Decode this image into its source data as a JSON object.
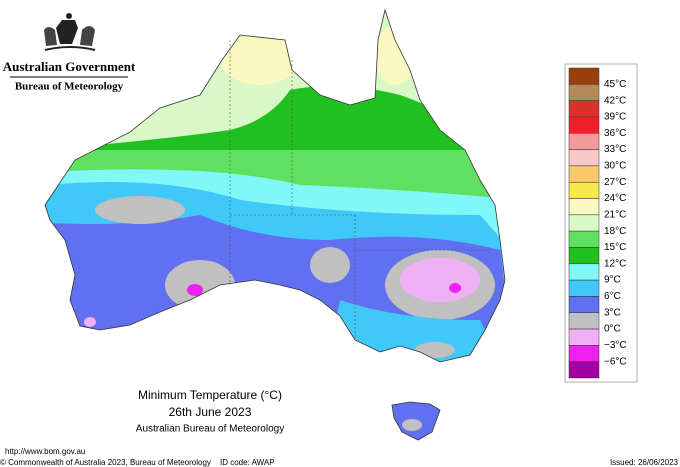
{
  "header": {
    "government": "Australian Government",
    "bureau": "Bureau of Meteorology"
  },
  "caption": {
    "title": "Minimum Temperature (°C)",
    "date": "26th June 2023",
    "source": "Australian Bureau of Meteorology"
  },
  "legend": {
    "labels": [
      "45°C",
      "42°C",
      "39°C",
      "36°C",
      "33°C",
      "30°C",
      "27°C",
      "24°C",
      "21°C",
      "18°C",
      "15°C",
      "12°C",
      "9°C",
      "6°C",
      "3°C",
      "0°C",
      "−3°C",
      "−6°C"
    ],
    "colors": [
      "#9a3f0c",
      "#b5875a",
      "#d9322c",
      "#f0202a",
      "#f59a9a",
      "#f8c8c8",
      "#f8c86a",
      "#f8e850",
      "#f8f8c0",
      "#d8f8c8",
      "#60e060",
      "#20c020",
      "#80f8f8",
      "#40c8f8",
      "#6070f0",
      "#c0c0c0",
      "#f0b0f8",
      "#f020f0",
      "#a000a0"
    ]
  },
  "footer": {
    "url": "http://www.bom.gov.au",
    "copyright": "© Commonwealth of Australia 2023, Bureau of Meteorology",
    "id_code": "ID code: AWAP",
    "issued": "Issued: 26/06/2023"
  }
}
